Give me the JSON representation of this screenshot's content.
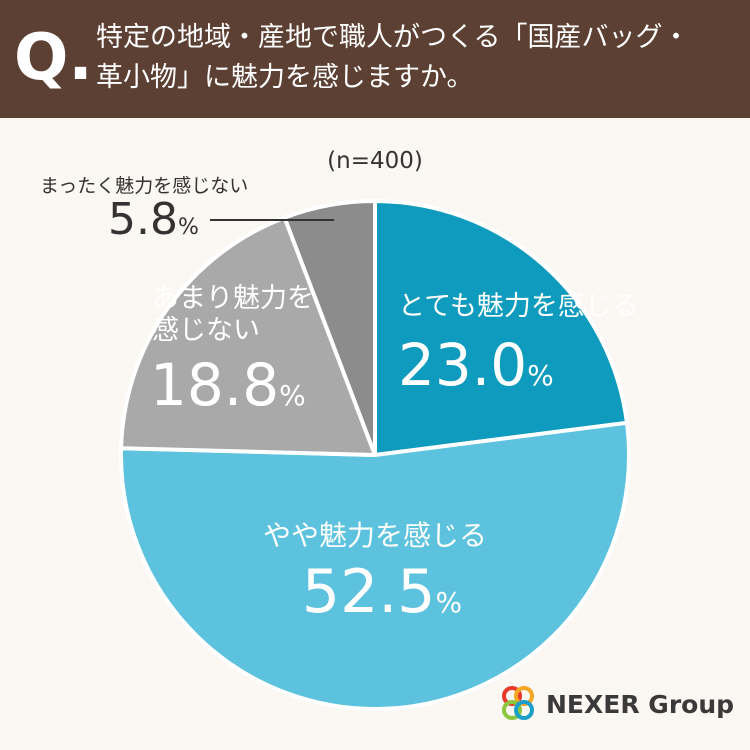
{
  "header": {
    "q_mark": "Q.",
    "question_line1": "特定の地域・産地で職人がつくる「国産バッグ・",
    "question_line2": "革小物」に魅力を感じますか。"
  },
  "chart_data": {
    "type": "pie",
    "sample_note": "(n=400)",
    "percent_unit": "%",
    "start": "12 o'clock",
    "direction": "clockwise",
    "slices": [
      {
        "label_lines": [
          "とても魅力を感じる"
        ],
        "value": 23.0,
        "value_text": "23.0",
        "color": "#0f9bbe",
        "text_color": "#ffffff"
      },
      {
        "label_lines": [
          "やや魅力を感じる"
        ],
        "value": 52.5,
        "value_text": "52.5",
        "color": "#5cc2dd",
        "text_color": "#ffffff"
      },
      {
        "label_lines": [
          "あまり魅力を",
          "感じない"
        ],
        "value": 18.8,
        "value_text": "18.8",
        "color": "#a9a9a9",
        "text_color": "#ffffff"
      },
      {
        "label_lines": [
          "まったく魅力を感じない"
        ],
        "value": 5.8,
        "value_text": "5.8",
        "color": "#8c8c8c",
        "text_color": "#333333"
      }
    ]
  },
  "logo": {
    "text": "NEXER Group",
    "ring_colors": [
      "#e8392b",
      "#f5a623",
      "#8cc63f",
      "#1aa0c8"
    ]
  }
}
